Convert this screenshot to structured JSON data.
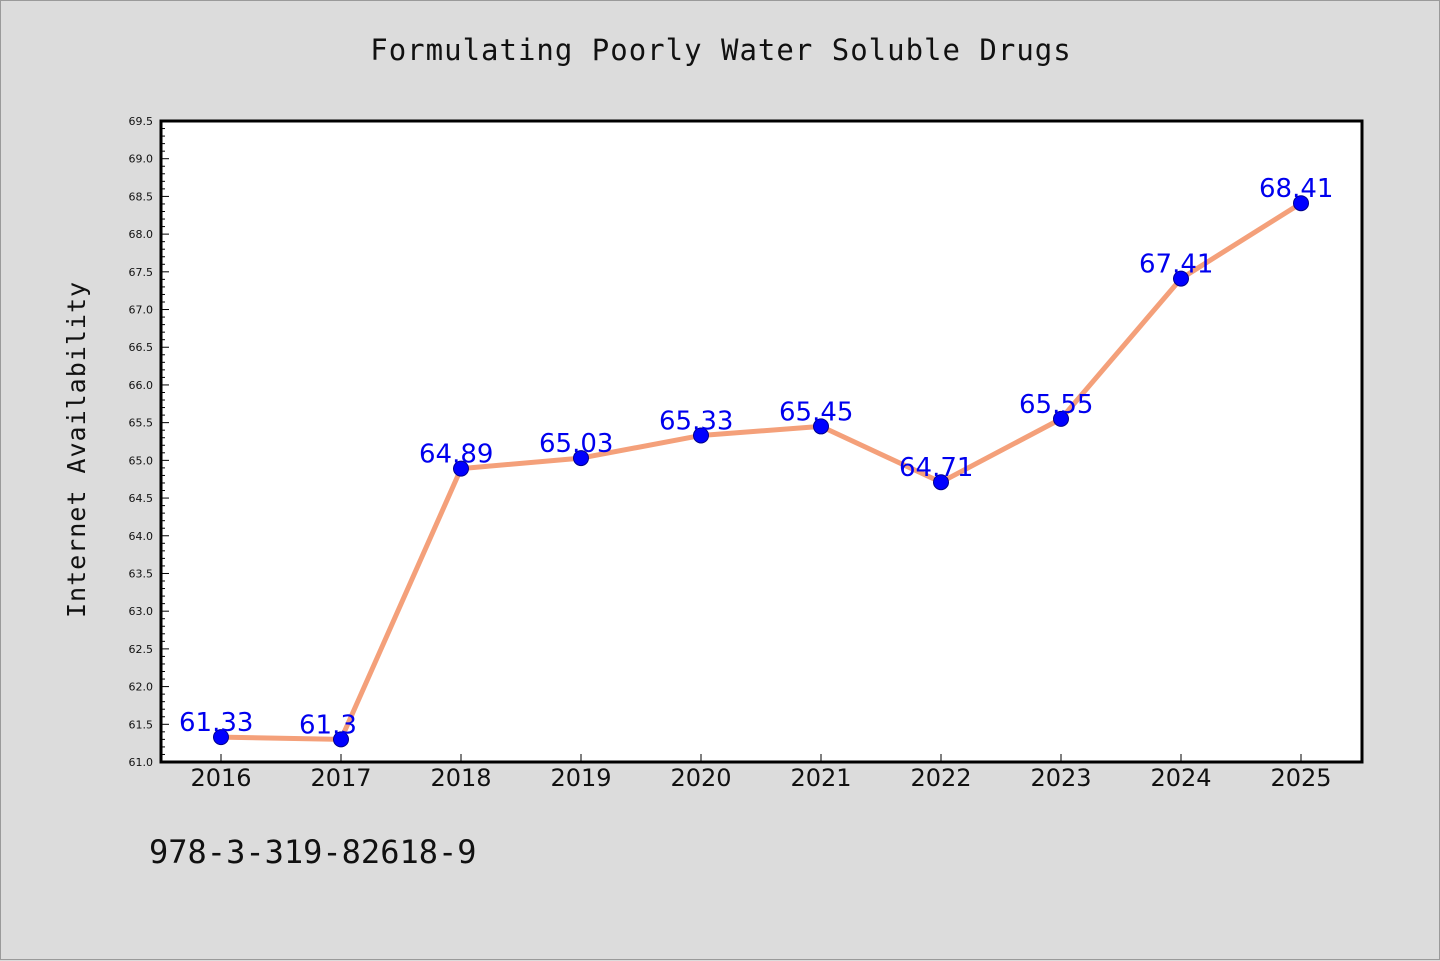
{
  "title": "Formulating Poorly Water Soluble Drugs",
  "footnote": "978-3-319-82618-9",
  "chart_data": {
    "type": "line",
    "title": "Formulating Poorly Water Soluble Drugs",
    "xlabel": "",
    "ylabel": "Internet Availability",
    "categories": [
      "2016",
      "2017",
      "2018",
      "2019",
      "2020",
      "2021",
      "2022",
      "2023",
      "2024",
      "2025"
    ],
    "series": [
      {
        "values": [
          61.33,
          61.3,
          64.89,
          65.03,
          65.33,
          65.45,
          64.71,
          65.55,
          67.41,
          68.41
        ],
        "line_color": "#f4a07a",
        "marker_color": "#0000ff"
      }
    ],
    "data_labels": [
      "61.33",
      "61.3",
      "64.89",
      "65.03",
      "65.33",
      "65.45",
      "64.71",
      "65.55",
      "67.41",
      "68.41"
    ],
    "ylim": [
      61.0,
      69.5
    ],
    "yticks": [
      "61.0",
      "61.5",
      "62.0",
      "62.5",
      "63.0",
      "63.5",
      "64.0",
      "64.5",
      "65.0",
      "65.5",
      "66.0",
      "66.5",
      "67.0",
      "67.5",
      "68.0",
      "68.5",
      "69.0",
      "69.5"
    ],
    "grid": false,
    "legend": "none"
  }
}
